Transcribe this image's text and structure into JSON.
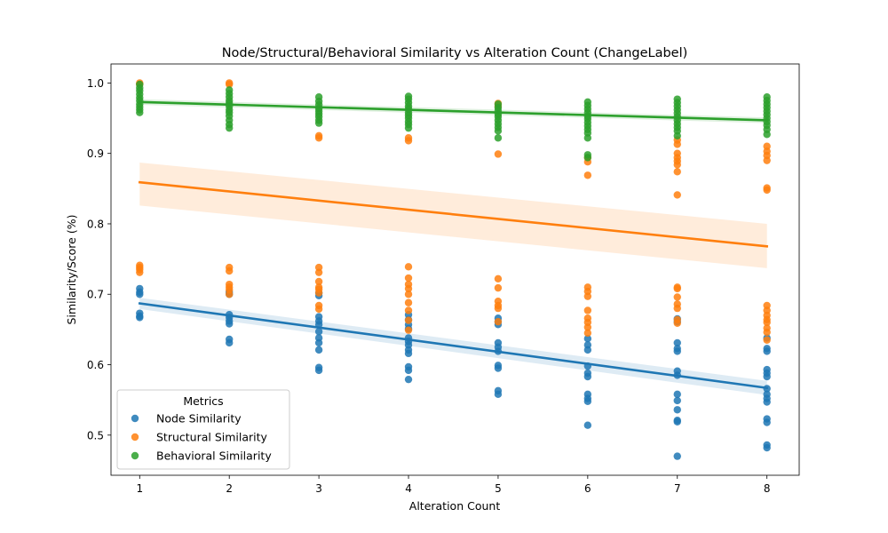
{
  "chart_data": {
    "type": "scatter",
    "title": "Node/Structural/Behavioral Similarity vs Alteration Count (ChangeLabel)",
    "xlabel": "Alteration Count",
    "ylabel": "Similarity/Score (%)",
    "xlim": [
      0.68,
      8.36
    ],
    "ylim": [
      0.443,
      1.027
    ],
    "xticks": [
      1,
      2,
      3,
      4,
      5,
      6,
      7,
      8
    ],
    "yticks": [
      0.5,
      0.6,
      0.7,
      0.8,
      0.9,
      1.0
    ],
    "ytick_labels": [
      "0.5",
      "0.6",
      "0.7",
      "0.8",
      "0.9",
      "1.0"
    ],
    "grid": false,
    "legend": {
      "title": "Metrics",
      "placement": "lower-left"
    },
    "series": [
      {
        "name": "Node Similarity",
        "color": "#1f77b4",
        "fit": {
          "x": [
            1,
            8
          ],
          "y": [
            0.687,
            0.567
          ]
        },
        "ci": {
          "x": [
            1,
            8
          ],
          "lower": [
            0.679,
            0.557
          ],
          "upper": [
            0.695,
            0.577
          ]
        },
        "points": {
          "1": [
            0.708,
            0.703,
            0.7,
            0.673,
            0.669,
            0.667
          ],
          "2": [
            0.703,
            0.7,
            0.671,
            0.667,
            0.662,
            0.658,
            0.636,
            0.631
          ],
          "3": [
            0.702,
            0.698,
            0.668,
            0.662,
            0.657,
            0.647,
            0.638,
            0.631,
            0.621,
            0.596,
            0.592
          ],
          "4": [
            0.671,
            0.664,
            0.657,
            0.651,
            0.638,
            0.633,
            0.628,
            0.621,
            0.616,
            0.597,
            0.592,
            0.579
          ],
          "5": [
            0.666,
            0.661,
            0.657,
            0.631,
            0.625,
            0.619,
            0.599,
            0.595,
            0.563,
            0.558
          ],
          "6": [
            0.637,
            0.628,
            0.621,
            0.598,
            0.588,
            0.583,
            0.558,
            0.552,
            0.548,
            0.514
          ],
          "7": [
            0.665,
            0.661,
            0.631,
            0.623,
            0.619,
            0.591,
            0.585,
            0.558,
            0.549,
            0.536,
            0.521,
            0.519,
            0.47
          ],
          "8": [
            0.638,
            0.623,
            0.619,
            0.593,
            0.588,
            0.583,
            0.566,
            0.558,
            0.552,
            0.547,
            0.523,
            0.518,
            0.486,
            0.482
          ]
        }
      },
      {
        "name": "Structural Similarity",
        "color": "#ff7f0e",
        "fit": {
          "x": [
            1,
            8
          ],
          "y": [
            0.859,
            0.768
          ]
        },
        "ci": {
          "x": [
            1,
            8
          ],
          "lower": [
            0.826,
            0.737
          ],
          "upper": [
            0.887,
            0.8
          ]
        },
        "points": {
          "1": [
            1.0,
            0.998,
            0.741,
            0.738,
            0.735,
            0.731
          ],
          "2": [
            1.0,
            0.998,
            0.738,
            0.733,
            0.714,
            0.71,
            0.706,
            0.7
          ],
          "3": [
            0.738,
            0.731,
            0.718,
            0.71,
            0.707,
            0.702,
            0.684,
            0.679,
            0.925,
            0.922
          ],
          "4": [
            0.739,
            0.723,
            0.714,
            0.708,
            0.7,
            0.688,
            0.677,
            0.663,
            0.649,
            0.922,
            0.918
          ],
          "5": [
            0.971,
            0.967,
            0.722,
            0.709,
            0.69,
            0.684,
            0.68,
            0.661,
            0.899
          ],
          "6": [
            0.71,
            0.704,
            0.697,
            0.677,
            0.666,
            0.66,
            0.653,
            0.645,
            0.894,
            0.888,
            0.869
          ],
          "7": [
            0.919,
            0.913,
            0.9,
            0.894,
            0.889,
            0.884,
            0.874,
            0.841,
            0.71,
            0.708,
            0.696,
            0.686,
            0.68,
            0.664,
            0.659
          ],
          "8": [
            0.91,
            0.903,
            0.897,
            0.89,
            0.851,
            0.848,
            0.684,
            0.677,
            0.67,
            0.664,
            0.66,
            0.652,
            0.646,
            0.635
          ]
        }
      },
      {
        "name": "Behavioral Similarity",
        "color": "#2ca02c",
        "fit": {
          "x": [
            1,
            8
          ],
          "y": [
            0.973,
            0.947
          ]
        },
        "ci": {
          "x": [
            1,
            8
          ],
          "lower": [
            0.969,
            0.943
          ],
          "upper": [
            0.977,
            0.951
          ]
        },
        "points": {
          "1": [
            0.998,
            0.993,
            0.989,
            0.984,
            0.979,
            0.975,
            0.97,
            0.966,
            0.962,
            0.958
          ],
          "2": [
            0.99,
            0.985,
            0.98,
            0.975,
            0.971,
            0.967,
            0.962,
            0.958,
            0.953,
            0.947,
            0.941,
            0.936
          ],
          "3": [
            0.98,
            0.974,
            0.969,
            0.964,
            0.96,
            0.956,
            0.952,
            0.947,
            0.943
          ],
          "4": [
            0.981,
            0.977,
            0.972,
            0.967,
            0.963,
            0.958,
            0.954,
            0.95,
            0.945,
            0.941,
            0.936
          ],
          "5": [
            0.97,
            0.965,
            0.961,
            0.956,
            0.952,
            0.947,
            0.942,
            0.937,
            0.932,
            0.922
          ],
          "6": [
            0.973,
            0.968,
            0.963,
            0.958,
            0.953,
            0.949,
            0.944,
            0.939,
            0.934,
            0.929,
            0.922,
            0.898,
            0.894
          ],
          "7": [
            0.977,
            0.972,
            0.967,
            0.962,
            0.957,
            0.952,
            0.947,
            0.942,
            0.937,
            0.932,
            0.925
          ],
          "8": [
            0.98,
            0.975,
            0.97,
            0.965,
            0.96,
            0.955,
            0.95,
            0.945,
            0.94,
            0.934,
            0.927
          ]
        }
      }
    ]
  }
}
